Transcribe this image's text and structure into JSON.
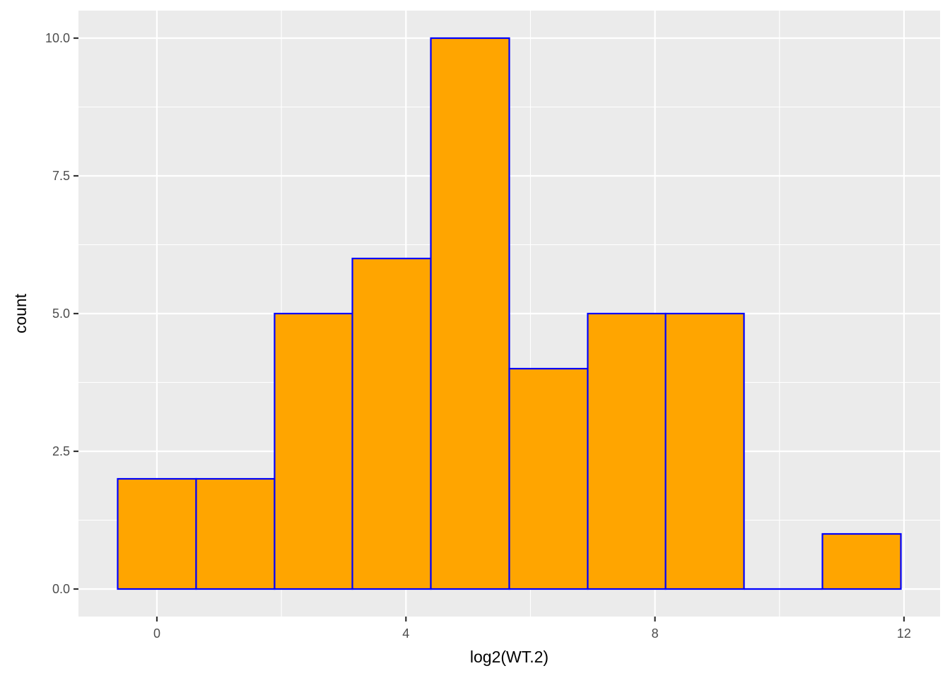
{
  "chart_data": {
    "type": "bar",
    "subtype": "histogram",
    "title": "",
    "xlabel": "log2(WT.2)",
    "ylabel": "count",
    "bin_width": 1.2575,
    "bins": [
      {
        "x_start": -0.63,
        "x_end": 0.63,
        "count": 2
      },
      {
        "x_start": 0.63,
        "x_end": 1.89,
        "count": 2
      },
      {
        "x_start": 1.89,
        "x_end": 3.14,
        "count": 5
      },
      {
        "x_start": 3.14,
        "x_end": 4.4,
        "count": 6
      },
      {
        "x_start": 4.4,
        "x_end": 5.66,
        "count": 10
      },
      {
        "x_start": 5.66,
        "x_end": 6.92,
        "count": 4
      },
      {
        "x_start": 6.92,
        "x_end": 8.17,
        "count": 5
      },
      {
        "x_start": 8.17,
        "x_end": 9.43,
        "count": 5
      },
      {
        "x_start": 9.43,
        "x_end": 10.69,
        "count": 0
      },
      {
        "x_start": 10.69,
        "x_end": 11.95,
        "count": 1
      }
    ],
    "xlim": [
      -1.26,
      12.58
    ],
    "ylim": [
      -0.5,
      10.5
    ],
    "x_ticks": [
      0,
      4,
      8,
      12
    ],
    "x_tick_labels": [
      "0",
      "4",
      "8",
      "12"
    ],
    "x_minor_ticks": [
      2,
      6,
      10
    ],
    "y_ticks": [
      0,
      2.5,
      5,
      7.5,
      10
    ],
    "y_tick_labels": [
      "0.0",
      "2.5",
      "5.0",
      "7.5",
      "10.0"
    ],
    "y_minor_ticks": [
      1.25,
      3.75,
      6.25,
      8.75
    ],
    "grid": true,
    "legend": "none",
    "colors": {
      "bar_fill": "#FFA500",
      "bar_outline": "#0000FF",
      "panel_background": "#EBEBEB",
      "grid_line": "#FFFFFF"
    }
  }
}
